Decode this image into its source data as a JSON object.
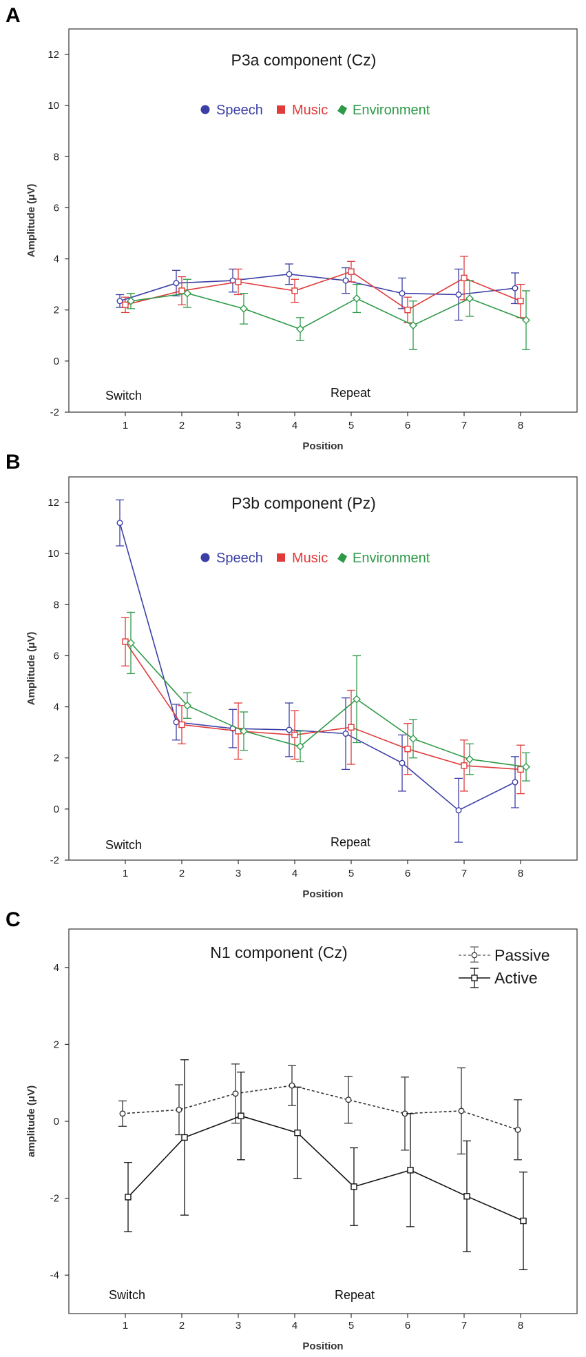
{
  "chart_data": [
    {
      "panel": "A",
      "type": "line",
      "title": "P3a component (Cz)",
      "xlabel": "Position",
      "ylabel": "Amplitude (μV)",
      "xlim": [
        0,
        9
      ],
      "ylim": [
        -2,
        13
      ],
      "yticks": [
        -2,
        0,
        2,
        4,
        6,
        8,
        10,
        12
      ],
      "categories": [
        "1",
        "2",
        "3",
        "4",
        "5",
        "6",
        "7",
        "8"
      ],
      "annotations": [
        "Switch",
        "Repeat"
      ],
      "series": [
        {
          "name": "Speech",
          "color": "#3b3fa5",
          "marker": "circle",
          "values": [
            2.35,
            3.05,
            3.15,
            3.4,
            3.15,
            2.65,
            2.6,
            2.85
          ],
          "errors": [
            0.25,
            0.5,
            0.45,
            0.4,
            0.5,
            0.6,
            1.0,
            0.6
          ]
        },
        {
          "name": "Music",
          "color": "#e03a3a",
          "marker": "square",
          "values": [
            2.2,
            2.75,
            3.1,
            2.75,
            3.5,
            2.0,
            3.25,
            2.35
          ],
          "errors": [
            0.3,
            0.55,
            0.5,
            0.45,
            0.4,
            0.5,
            0.85,
            0.65
          ]
        },
        {
          "name": "Environment",
          "color": "#2e9a48",
          "marker": "diamond",
          "values": [
            2.35,
            2.65,
            2.05,
            1.25,
            2.45,
            1.4,
            2.45,
            1.6
          ],
          "errors": [
            0.3,
            0.55,
            0.6,
            0.45,
            0.55,
            0.95,
            0.7,
            1.15
          ]
        }
      ]
    },
    {
      "panel": "B",
      "type": "line",
      "title": "P3b component (Pz)",
      "xlabel": "Position",
      "ylabel": "Amplitude (μV)",
      "xlim": [
        0,
        9
      ],
      "ylim": [
        -2,
        13
      ],
      "yticks": [
        -2,
        0,
        2,
        4,
        6,
        8,
        10,
        12
      ],
      "categories": [
        "1",
        "2",
        "3",
        "4",
        "5",
        "6",
        "7",
        "8"
      ],
      "annotations": [
        "Switch",
        "Repeat"
      ],
      "series": [
        {
          "name": "Speech",
          "color": "#3b3fa5",
          "marker": "circle",
          "values": [
            11.2,
            3.4,
            3.15,
            3.1,
            2.95,
            1.8,
            -0.05,
            1.05
          ],
          "errors": [
            0.9,
            0.7,
            0.75,
            1.05,
            1.4,
            1.1,
            1.25,
            1.0
          ]
        },
        {
          "name": "Music",
          "color": "#e03a3a",
          "marker": "square",
          "values": [
            6.55,
            3.3,
            3.05,
            2.9,
            3.2,
            2.35,
            1.7,
            1.55
          ],
          "errors": [
            0.95,
            0.75,
            1.1,
            0.95,
            1.45,
            1.0,
            1.0,
            0.95
          ]
        },
        {
          "name": "Environment",
          "color": "#2e9a48",
          "marker": "diamond",
          "values": [
            6.5,
            4.05,
            3.05,
            2.45,
            4.3,
            2.75,
            1.95,
            1.65
          ],
          "errors": [
            1.2,
            0.5,
            0.75,
            0.6,
            1.7,
            0.75,
            0.6,
            0.55
          ]
        }
      ]
    },
    {
      "panel": "C",
      "type": "line",
      "title": "N1 component (Cz)",
      "xlabel": "Position",
      "ylabel": "amplitude (μV)",
      "xlim": [
        0,
        9
      ],
      "ylim": [
        -5,
        5
      ],
      "yticks": [
        -4,
        -2,
        0,
        2,
        4
      ],
      "categories": [
        "1",
        "2",
        "3",
        "4",
        "5",
        "6",
        "7",
        "8"
      ],
      "annotations": [
        "Switch",
        "Repeat"
      ],
      "series": [
        {
          "name": "Passive",
          "color": "#333333",
          "marker": "circle",
          "dashed": true,
          "values": [
            0.2,
            0.3,
            0.72,
            0.93,
            0.56,
            0.2,
            0.27,
            -0.22
          ],
          "errors": [
            0.33,
            0.65,
            0.77,
            0.52,
            0.61,
            0.95,
            1.12,
            0.78
          ]
        },
        {
          "name": "Active",
          "color": "#111111",
          "marker": "square",
          "dashed": false,
          "values": [
            -1.97,
            -0.42,
            0.14,
            -0.3,
            -1.7,
            -1.27,
            -1.95,
            -2.59
          ],
          "errors": [
            0.9,
            2.02,
            1.14,
            1.19,
            1.01,
            1.47,
            1.44,
            1.27
          ]
        }
      ]
    }
  ]
}
